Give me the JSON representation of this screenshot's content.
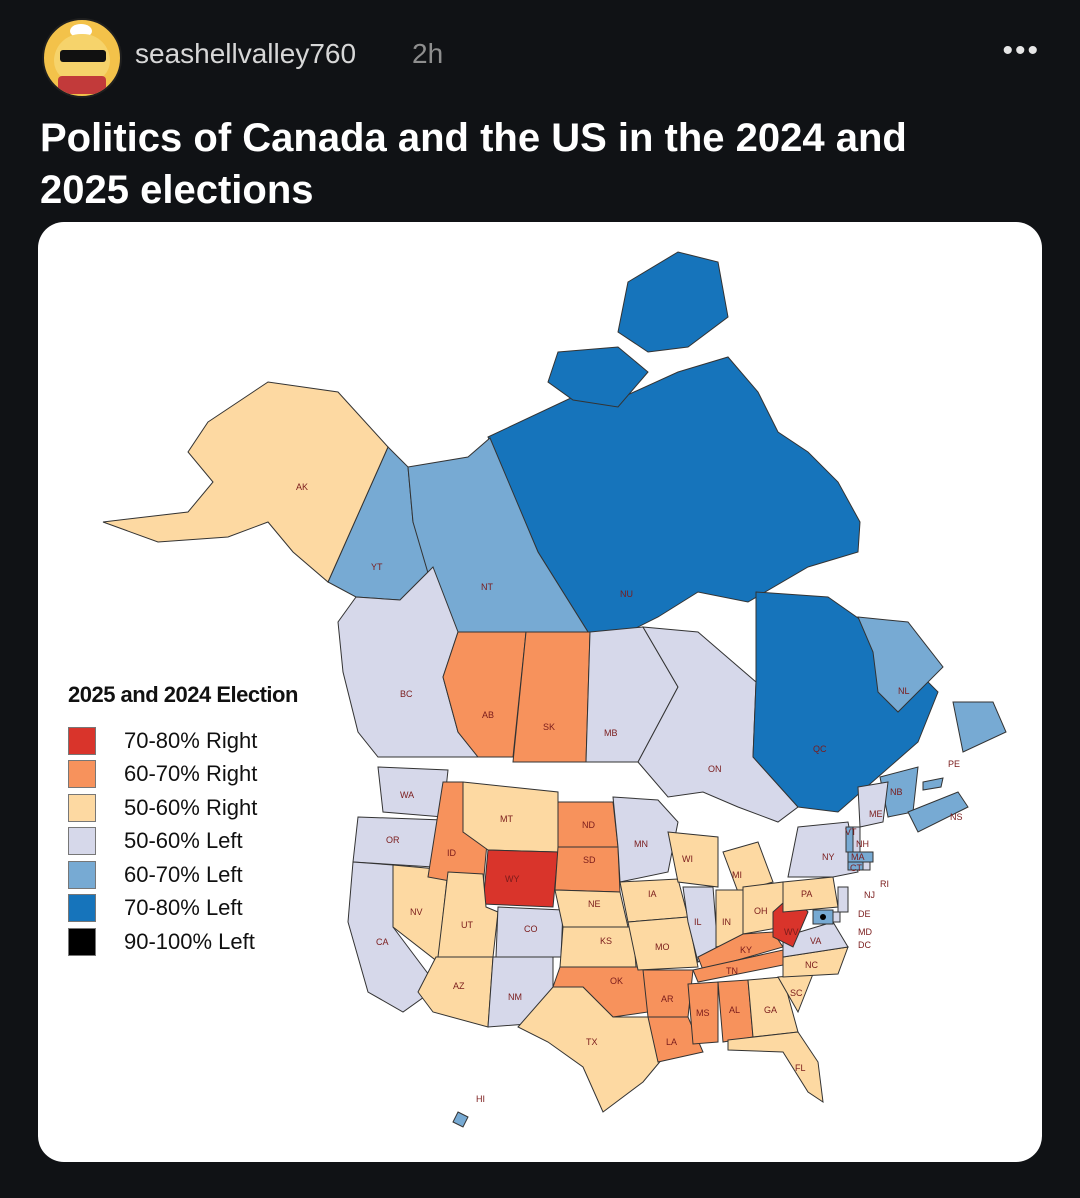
{
  "post": {
    "username": "seashellvalley760",
    "time": "2h",
    "more_icon": "ellipsis-icon",
    "title": "Politics of Canada and the US in the 2024 and 2025 elections"
  },
  "map": {
    "legend_title": "2025 and 2024 Election",
    "legend": [
      {
        "label": "70-80% Right",
        "color": "#d9342b"
      },
      {
        "label": "60-70% Right",
        "color": "#f7925c"
      },
      {
        "label": "50-60% Right",
        "color": "#fdd9a2"
      },
      {
        "label": "50-60% Left",
        "color": "#d6d8ea"
      },
      {
        "label": "60-70% Left",
        "color": "#77aad3"
      },
      {
        "label": "70-80% Left",
        "color": "#1674bb"
      },
      {
        "label": "90-100% Left",
        "color": "#000000"
      }
    ],
    "regions": [
      {
        "code": "AK",
        "fill": "#fdd9a2"
      },
      {
        "code": "YT",
        "fill": "#77aad3"
      },
      {
        "code": "NT",
        "fill": "#77aad3"
      },
      {
        "code": "NU",
        "fill": "#1674bb"
      },
      {
        "code": "BC",
        "fill": "#d6d8ea"
      },
      {
        "code": "AB",
        "fill": "#f7925c"
      },
      {
        "code": "SK",
        "fill": "#f7925c"
      },
      {
        "code": "MB",
        "fill": "#d6d8ea"
      },
      {
        "code": "ON",
        "fill": "#d6d8ea"
      },
      {
        "code": "QC",
        "fill": "#1674bb"
      },
      {
        "code": "NL",
        "fill": "#77aad3"
      },
      {
        "code": "NB",
        "fill": "#77aad3"
      },
      {
        "code": "NS",
        "fill": "#77aad3"
      },
      {
        "code": "PE",
        "fill": "#77aad3"
      },
      {
        "code": "WA",
        "fill": "#d6d8ea"
      },
      {
        "code": "OR",
        "fill": "#d6d8ea"
      },
      {
        "code": "CA",
        "fill": "#d6d8ea"
      },
      {
        "code": "NV",
        "fill": "#fdd9a2"
      },
      {
        "code": "ID",
        "fill": "#f7925c"
      },
      {
        "code": "MT",
        "fill": "#fdd9a2"
      },
      {
        "code": "WY",
        "fill": "#d9342b"
      },
      {
        "code": "UT",
        "fill": "#fdd9a2"
      },
      {
        "code": "AZ",
        "fill": "#fdd9a2"
      },
      {
        "code": "CO",
        "fill": "#d6d8ea"
      },
      {
        "code": "NM",
        "fill": "#d6d8ea"
      },
      {
        "code": "ND",
        "fill": "#f7925c"
      },
      {
        "code": "SD",
        "fill": "#f7925c"
      },
      {
        "code": "NE",
        "fill": "#fdd9a2"
      },
      {
        "code": "KS",
        "fill": "#fdd9a2"
      },
      {
        "code": "OK",
        "fill": "#f7925c"
      },
      {
        "code": "TX",
        "fill": "#fdd9a2"
      },
      {
        "code": "MN",
        "fill": "#d6d8ea"
      },
      {
        "code": "IA",
        "fill": "#fdd9a2"
      },
      {
        "code": "MO",
        "fill": "#fdd9a2"
      },
      {
        "code": "AR",
        "fill": "#f7925c"
      },
      {
        "code": "LA",
        "fill": "#f7925c"
      },
      {
        "code": "WI",
        "fill": "#fdd9a2"
      },
      {
        "code": "IL",
        "fill": "#d6d8ea"
      },
      {
        "code": "MI",
        "fill": "#fdd9a2"
      },
      {
        "code": "IN",
        "fill": "#fdd9a2"
      },
      {
        "code": "OH",
        "fill": "#fdd9a2"
      },
      {
        "code": "KY",
        "fill": "#f7925c"
      },
      {
        "code": "TN",
        "fill": "#f7925c"
      },
      {
        "code": "MS",
        "fill": "#f7925c"
      },
      {
        "code": "AL",
        "fill": "#f7925c"
      },
      {
        "code": "GA",
        "fill": "#fdd9a2"
      },
      {
        "code": "FL",
        "fill": "#fdd9a2"
      },
      {
        "code": "SC",
        "fill": "#fdd9a2"
      },
      {
        "code": "NC",
        "fill": "#fdd9a2"
      },
      {
        "code": "VA",
        "fill": "#d6d8ea"
      },
      {
        "code": "WV",
        "fill": "#d9342b"
      },
      {
        "code": "PA",
        "fill": "#fdd9a2"
      },
      {
        "code": "NY",
        "fill": "#d6d8ea"
      },
      {
        "code": "ME",
        "fill": "#d6d8ea"
      },
      {
        "code": "VT",
        "fill": "#77aad3"
      },
      {
        "code": "NH",
        "fill": "#d6d8ea"
      },
      {
        "code": "MA",
        "fill": "#77aad3"
      },
      {
        "code": "RI",
        "fill": "#d6d8ea"
      },
      {
        "code": "CT",
        "fill": "#77aad3"
      },
      {
        "code": "NJ",
        "fill": "#d6d8ea"
      },
      {
        "code": "DE",
        "fill": "#d6d8ea"
      },
      {
        "code": "MD",
        "fill": "#77aad3"
      },
      {
        "code": "DC",
        "fill": "#000000"
      },
      {
        "code": "HI",
        "fill": "#77aad3"
      }
    ]
  }
}
